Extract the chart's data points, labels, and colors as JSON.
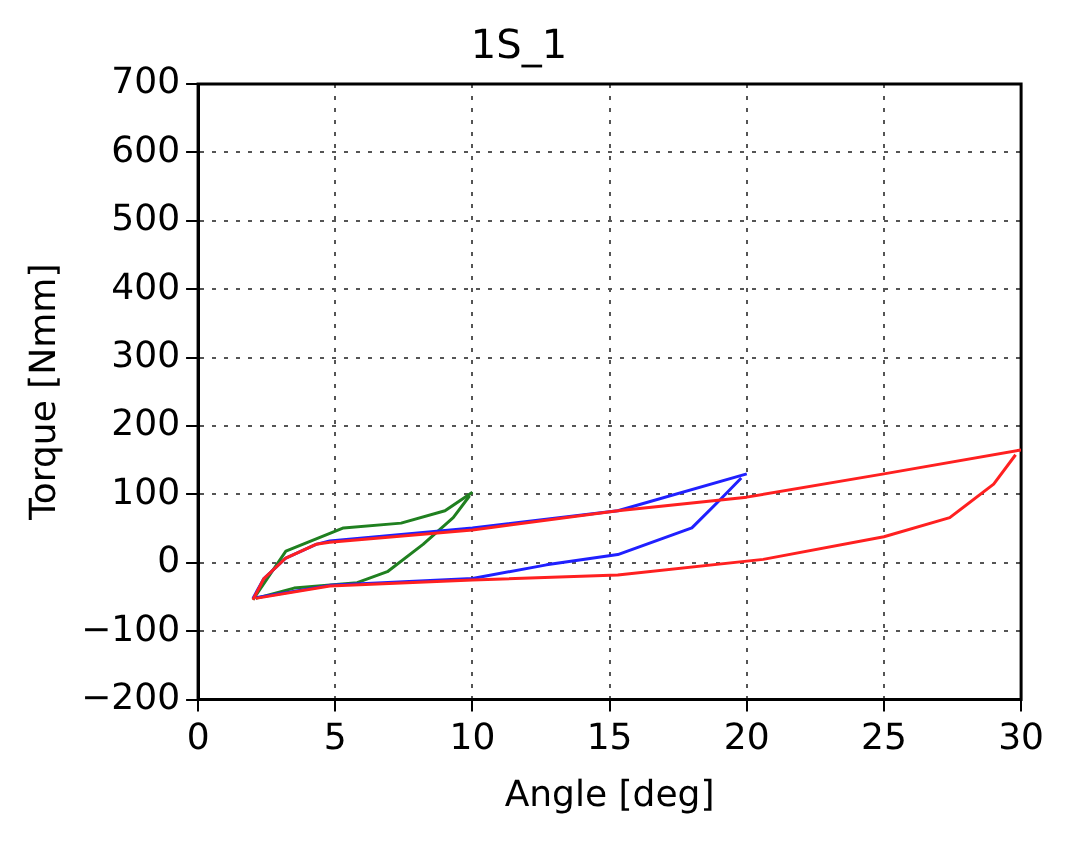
{
  "chart_data": {
    "type": "line",
    "title": "1S_1",
    "xlabel": "Angle [deg]",
    "ylabel": "Torque [Nmm]",
    "xlim": [
      0,
      30
    ],
    "xticks": [
      0,
      5,
      10,
      15,
      20,
      25,
      30
    ],
    "ylim": [
      -200,
      700
    ],
    "yticks": [
      -200,
      -100,
      0,
      100,
      200,
      300,
      400,
      500,
      600,
      700
    ],
    "grid": true,
    "line_style": "solid",
    "marker": "none",
    "legend": false,
    "series": [
      {
        "color": "#ff2020",
        "x": [
          2,
          2.4,
          3.2,
          4.3,
          4.8,
          10,
          15.3,
          20,
          25,
          30
        ],
        "values": [
          -54,
          -23,
          7,
          27,
          30,
          48,
          76,
          96,
          130,
          165
        ]
      },
      {
        "color": "#ff2020",
        "x": [
          2.1,
          4.8,
          10,
          15.3,
          20.6,
          25,
          27.4,
          29,
          29.8
        ],
        "values": [
          -52,
          -34,
          -25,
          -18,
          5,
          38,
          66,
          115,
          158
        ]
      },
      {
        "color": "#2020ff",
        "x": [
          2,
          2.4,
          3.2,
          4.3,
          4.8,
          10,
          15.3,
          20
        ],
        "values": [
          -52,
          -23,
          7,
          27,
          32,
          51,
          76,
          130
        ]
      },
      {
        "color": "#2020ff",
        "x": [
          2.1,
          4.8,
          10,
          12.7,
          15.3,
          18,
          19,
          19.8
        ],
        "values": [
          -51,
          -33,
          -23,
          -3,
          12,
          51,
          91,
          124
        ]
      },
      {
        "color": "#208020",
        "x": [
          2,
          3.2,
          5.3,
          7.4,
          9,
          10
        ],
        "values": [
          -54,
          17,
          51,
          58,
          76,
          103
        ]
      },
      {
        "color": "#208020",
        "x": [
          2.1,
          3.5,
          5.8,
          6.9,
          8.2,
          9.3,
          9.9
        ],
        "values": [
          -52,
          -37,
          -29,
          -13,
          27,
          66,
          98
        ]
      }
    ]
  }
}
